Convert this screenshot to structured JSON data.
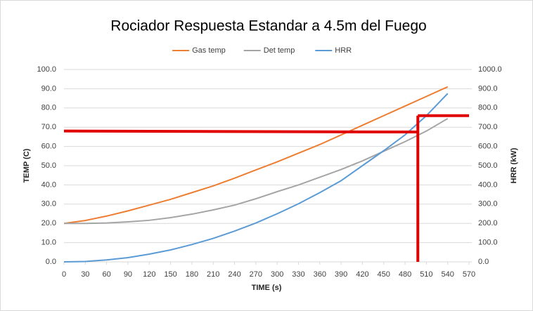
{
  "chart_data": {
    "type": "line",
    "title": "Rociador Respuesta Estandar a 4.5m del Fuego",
    "x_label": "TIME (s)",
    "y_label": "TEMP (C)",
    "y2_label": "HRR (kW)",
    "x": [
      0,
      30,
      60,
      90,
      120,
      150,
      180,
      210,
      240,
      270,
      300,
      330,
      360,
      390,
      420,
      450,
      480,
      510,
      540
    ],
    "series": [
      {
        "name": "Gas temp",
        "color": "#ed7d31",
        "values": [
          20,
          21.5,
          23.8,
          26.5,
          29.5,
          32.5,
          36,
          39.5,
          43.5,
          47.8,
          52,
          56.5,
          61,
          66,
          71,
          76,
          81,
          86,
          91
        ]
      },
      {
        "name": "Det temp",
        "color": "#a5a5a5",
        "values": [
          20,
          20,
          20.2,
          20.8,
          21.6,
          23,
          24.8,
          27,
          29.5,
          32.8,
          36.5,
          40,
          44,
          48,
          52.5,
          57.5,
          62.5,
          68,
          74.5
        ]
      },
      {
        "name": "HRR",
        "color": "#5b9bd5",
        "axis": "y2",
        "values": [
          0,
          2,
          10,
          22,
          40,
          62,
          90,
          122,
          160,
          202,
          250,
          302,
          360,
          422,
          500,
          578,
          660,
          760,
          875
        ]
      }
    ],
    "reference_lines": [
      {
        "color": "#e00000",
        "x": [
          0,
          498
        ],
        "values": [
          68,
          67.5
        ]
      },
      {
        "color": "#e00000",
        "x": [
          498,
          498
        ],
        "values": [
          0,
          76
        ]
      },
      {
        "color": "#e00000",
        "x": [
          498,
          570
        ],
        "values": [
          76,
          76
        ]
      }
    ],
    "xlim": [
      0,
      570
    ],
    "xticks": [
      0,
      30,
      60,
      90,
      120,
      150,
      180,
      210,
      240,
      270,
      300,
      330,
      360,
      390,
      420,
      450,
      480,
      510,
      540,
      570
    ],
    "ylim": [
      0,
      100
    ],
    "yticks": [
      {
        "value": 0,
        "label": "0.0"
      },
      {
        "value": 10,
        "label": "10.0"
      },
      {
        "value": 20,
        "label": "20.0"
      },
      {
        "value": 30,
        "label": "30.0"
      },
      {
        "value": 40,
        "label": "40.0"
      },
      {
        "value": 50,
        "label": "50.0"
      },
      {
        "value": 60,
        "label": "60.0"
      },
      {
        "value": 70,
        "label": "70.0"
      },
      {
        "value": 80,
        "label": "80.0"
      },
      {
        "value": 90,
        "label": "90.0"
      },
      {
        "value": 100,
        "label": "100.0"
      }
    ],
    "y2lim": [
      0,
      1000
    ],
    "y2ticks": [
      {
        "value": 0,
        "label": "0.0"
      },
      {
        "value": 100,
        "label": "100.0"
      },
      {
        "value": 200,
        "label": "200.0"
      },
      {
        "value": 300,
        "label": "300.0"
      },
      {
        "value": 400,
        "label": "400.0"
      },
      {
        "value": 500,
        "label": "500.0"
      },
      {
        "value": 600,
        "label": "600.0"
      },
      {
        "value": 700,
        "label": "700.0"
      },
      {
        "value": 800,
        "label": "800.0"
      },
      {
        "value": 900,
        "label": "900.0"
      },
      {
        "value": 1000,
        "label": "1000.0"
      }
    ],
    "grid": true,
    "legend": "top"
  }
}
